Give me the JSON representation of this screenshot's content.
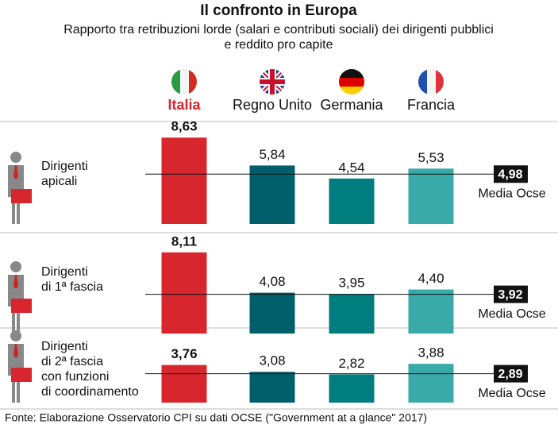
{
  "title": "Il confronto in Europa",
  "subtitle": [
    "Rapporto tra retribuzioni lorde (salari e contributi sociali) dei dirigenti pubblici",
    "e reddito pro capite"
  ],
  "countries": [
    "Italia",
    "Regno Unito",
    "Germania",
    "Francia"
  ],
  "colors": [
    "#d7262e",
    "#005f6b",
    "#007e7f",
    "#3aaaa8"
  ],
  "source": "Fonte:  Elaborazione Osservatorio CPI su dati OCSE (\"Government at a glance\" 2017)",
  "chart_data": [
    {
      "type": "bar",
      "label": [
        "Dirigenti",
        "apicali"
      ],
      "values": [
        8.63,
        5.84,
        4.54,
        5.53
      ],
      "value_labels": [
        "8,63",
        "5,84",
        "4,54",
        "5,53"
      ],
      "reference": {
        "value": 4.98,
        "label": "4,98",
        "name": "Media Ocse"
      }
    },
    {
      "type": "bar",
      "label": [
        "Dirigenti",
        "di 1ª fascia"
      ],
      "values": [
        8.11,
        4.08,
        3.95,
        4.4
      ],
      "value_labels": [
        "8,11",
        "4,08",
        "3,95",
        "4,40"
      ],
      "reference": {
        "value": 3.92,
        "label": "3,92",
        "name": "Media Ocse"
      }
    },
    {
      "type": "bar",
      "label": [
        "Dirigenti",
        "di 2ª fascia",
        "con funzioni",
        "di coordinamento"
      ],
      "values": [
        3.76,
        3.08,
        2.82,
        3.88
      ],
      "value_labels": [
        "3,76",
        "3,08",
        "2,82",
        "3,88"
      ],
      "reference": {
        "value": 2.89,
        "label": "2,89",
        "name": "Media Ocse"
      }
    }
  ]
}
